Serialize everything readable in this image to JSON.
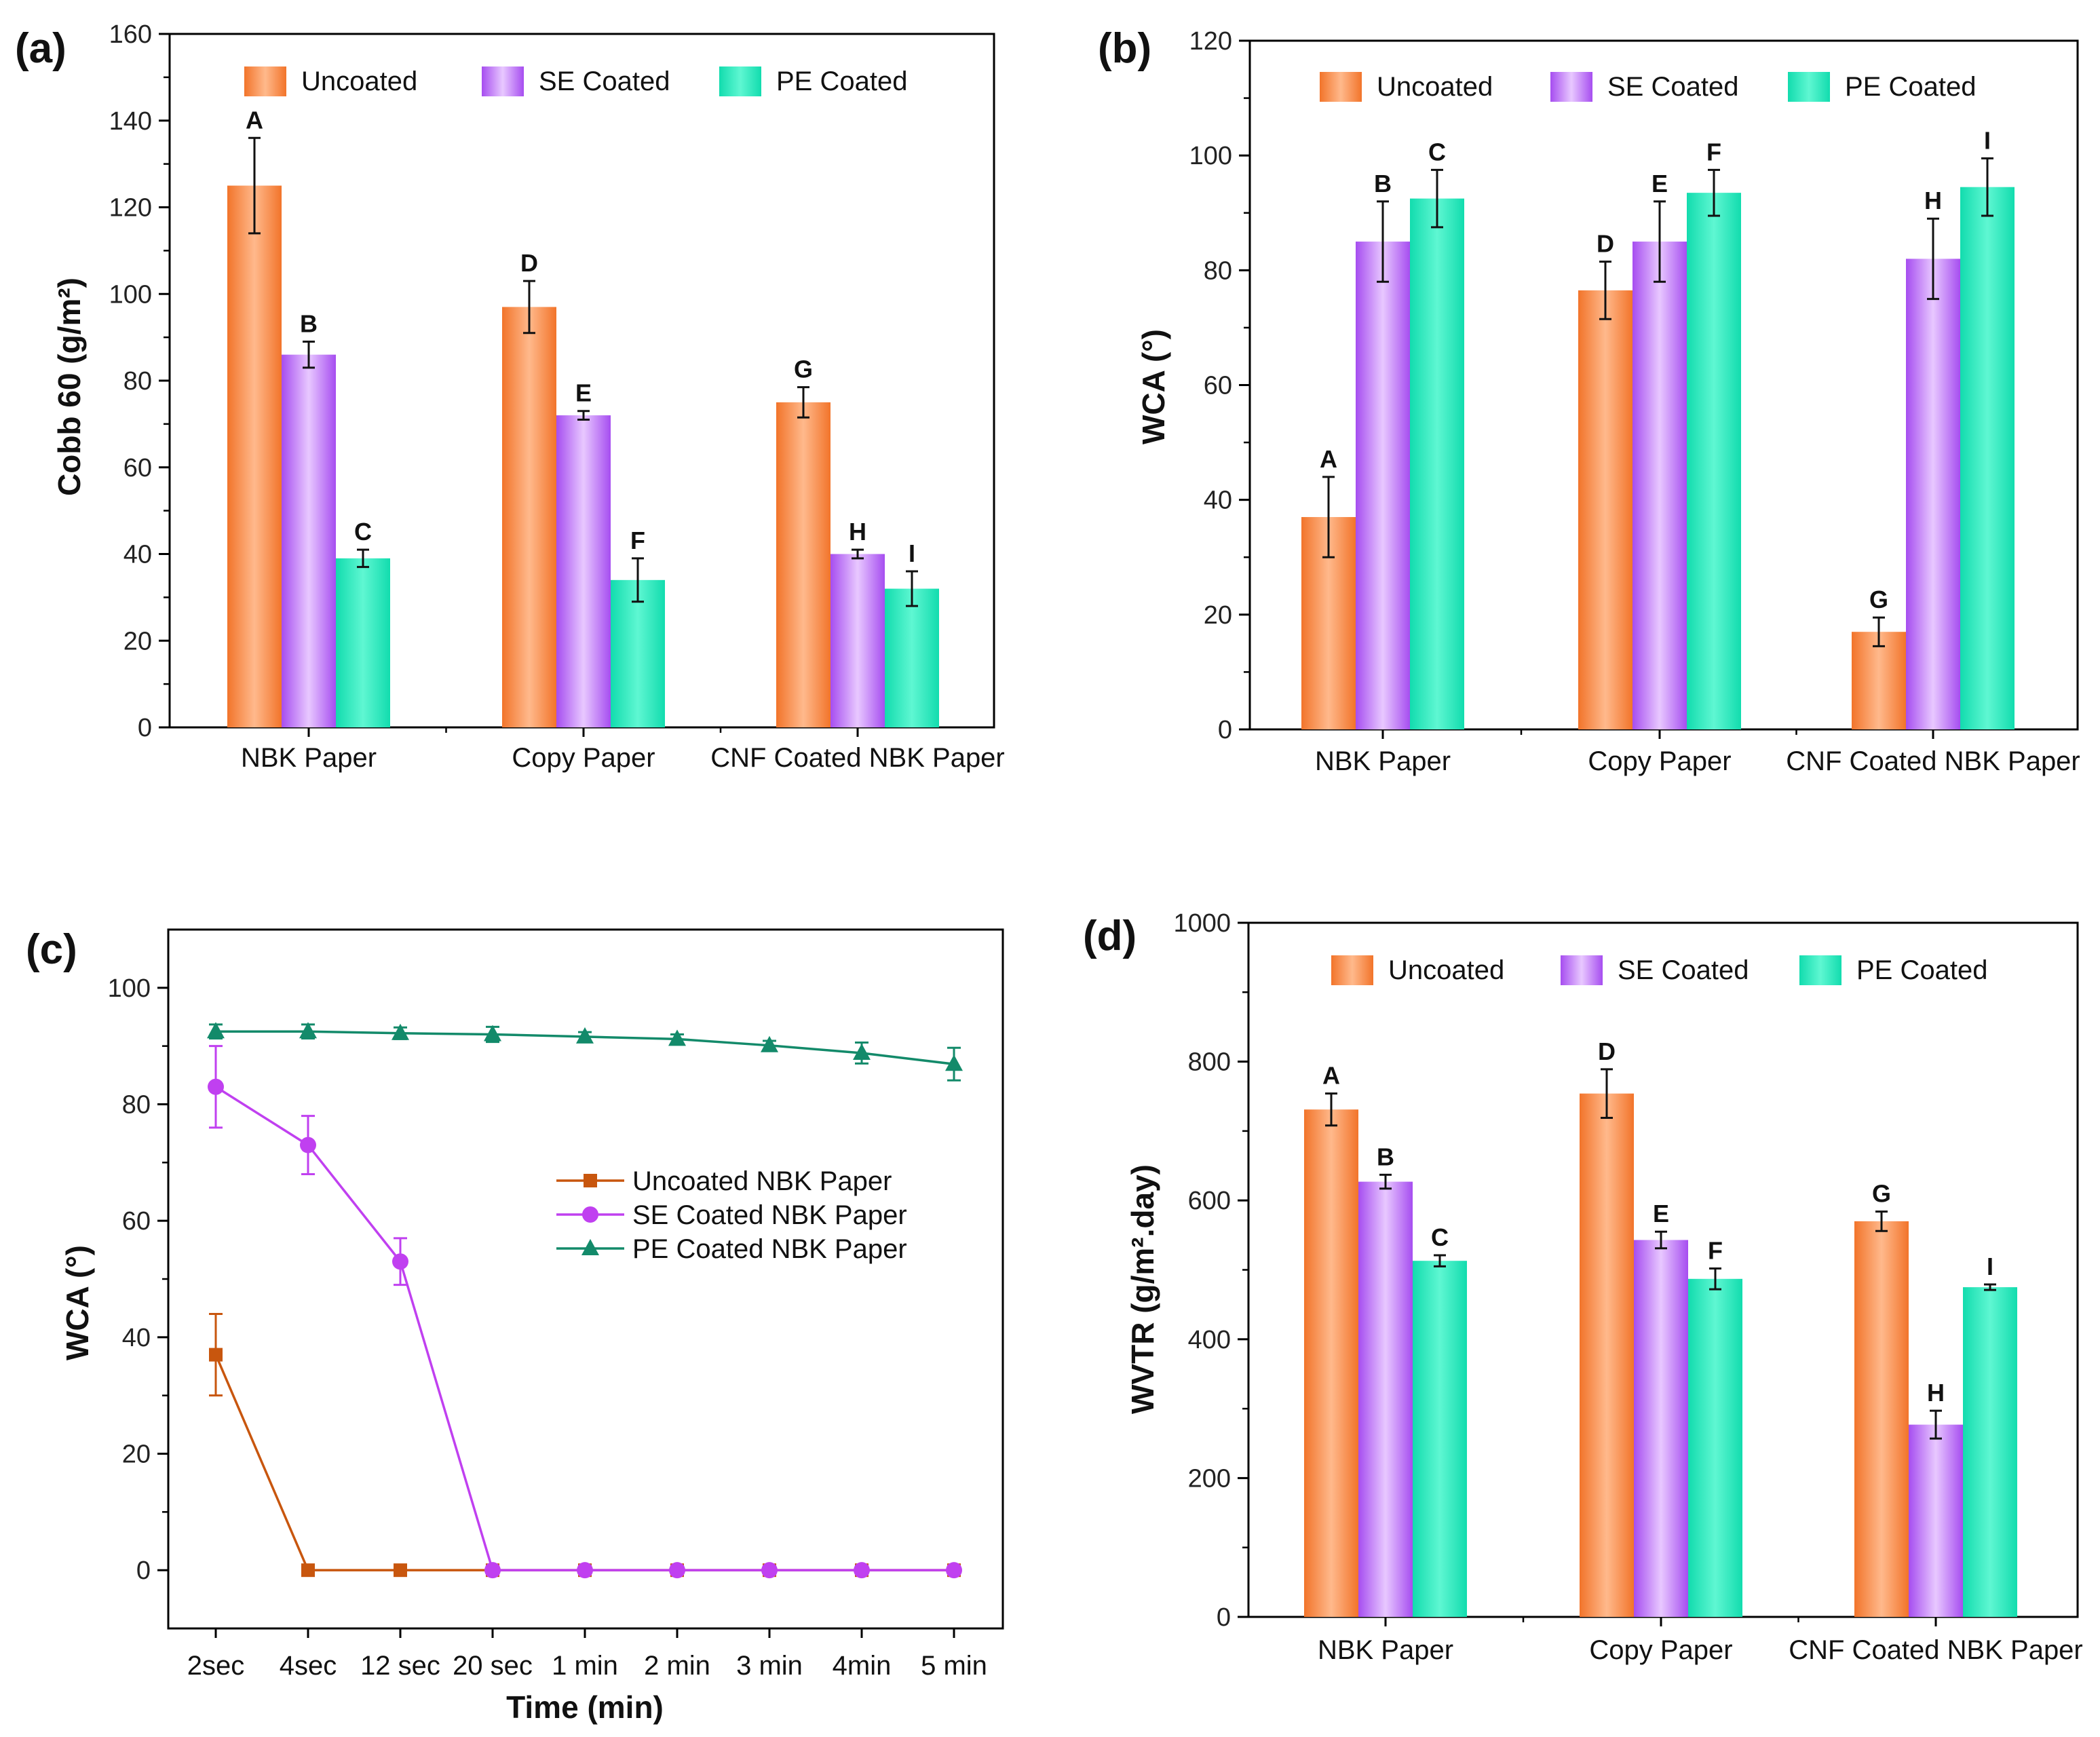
{
  "colors": {
    "uncoated_dark": "#f2742a",
    "uncoated_light": "#ffb98c",
    "se_dark": "#a64df0",
    "se_light": "#e8c8ff",
    "pe_dark": "#12dcae",
    "pe_light": "#5ff7d2",
    "line_uncoated": "#c8560e",
    "line_se": "#c040f0",
    "line_pe": "#138a6a"
  },
  "chart_data": [
    {
      "panel": "(a)",
      "type": "bar",
      "ylabel": "Cobb 60 (g/m²)",
      "ylim": [
        0,
        160
      ],
      "yticks": [
        0,
        20,
        40,
        60,
        80,
        100,
        120,
        140,
        160
      ],
      "categories": [
        "NBK Paper",
        "Copy Paper",
        "CNF Coated NBK Paper"
      ],
      "legend": [
        "Uncoated",
        "SE Coated",
        "PE Coated"
      ],
      "series": [
        {
          "name": "Uncoated",
          "values": [
            125,
            97,
            75
          ],
          "errors": [
            11,
            6,
            3.5
          ],
          "labels": [
            "A",
            "D",
            "G"
          ]
        },
        {
          "name": "SE Coated",
          "values": [
            86,
            72,
            40
          ],
          "errors": [
            3,
            1,
            1
          ],
          "labels": [
            "B",
            "E",
            "H"
          ]
        },
        {
          "name": "PE Coated",
          "values": [
            39,
            34,
            32
          ],
          "errors": [
            2,
            5,
            4
          ],
          "labels": [
            "C",
            "F",
            "I"
          ]
        }
      ]
    },
    {
      "panel": "(b)",
      "type": "bar",
      "ylabel": "WCA (°)",
      "ylim": [
        0,
        120
      ],
      "yticks": [
        0,
        20,
        40,
        60,
        80,
        100,
        120
      ],
      "categories": [
        "NBK Paper",
        "Copy Paper",
        "CNF Coated NBK Paper"
      ],
      "legend": [
        "Uncoated",
        "SE Coated",
        "PE Coated"
      ],
      "series": [
        {
          "name": "Uncoated",
          "values": [
            37,
            76.5,
            17
          ],
          "errors": [
            7,
            5,
            2.5
          ],
          "labels": [
            "A",
            "D",
            "G"
          ]
        },
        {
          "name": "SE Coated",
          "values": [
            85,
            85,
            82
          ],
          "errors": [
            7,
            7,
            7
          ],
          "labels": [
            "B",
            "E",
            "H"
          ]
        },
        {
          "name": "PE Coated",
          "values": [
            92.5,
            93.5,
            94.5
          ],
          "errors": [
            5,
            4,
            5
          ],
          "labels": [
            "C",
            "F",
            "I"
          ]
        }
      ]
    },
    {
      "panel": "(c)",
      "type": "line",
      "xlabel": "Time (min)",
      "ylabel": "WCA (°)",
      "ylim": [
        -10,
        110
      ],
      "yticks": [
        0,
        20,
        40,
        60,
        80,
        100
      ],
      "categories": [
        "2sec",
        "4sec",
        "12 sec",
        "20 sec",
        "1 min",
        "2 min",
        "3 min",
        "4min",
        "5 min"
      ],
      "series": [
        {
          "name": "Uncoated  NBK Paper",
          "marker": "square",
          "values": [
            37,
            0,
            0,
            0,
            0,
            0,
            0,
            0,
            0
          ],
          "errors": [
            7,
            0,
            0,
            0,
            0,
            0,
            0,
            0,
            0
          ]
        },
        {
          "name": "SE Coated NBK Paper",
          "marker": "circle",
          "values": [
            83,
            73,
            53,
            0,
            0,
            0,
            0,
            0,
            0
          ],
          "errors": [
            7,
            5,
            4,
            0,
            0,
            0,
            0,
            0,
            0
          ]
        },
        {
          "name": "PE Coated NBK Paper",
          "marker": "triangle",
          "values": [
            92.5,
            92.5,
            92.2,
            92,
            91.6,
            91.2,
            90.1,
            88.8,
            86.9
          ],
          "errors": [
            1.2,
            1.2,
            1,
            1.3,
            0.8,
            0.8,
            0.8,
            1.8,
            2.8
          ]
        }
      ]
    },
    {
      "panel": "(d)",
      "type": "bar",
      "ylabel": "WVTR (g/m².day)",
      "ylim": [
        0,
        1000
      ],
      "yticks": [
        0,
        200,
        400,
        600,
        800,
        1000
      ],
      "categories": [
        "NBK Paper",
        "Copy Paper",
        "CNF Coated NBK Paper"
      ],
      "legend": [
        "Uncoated",
        "SE Coated",
        "PE Coated"
      ],
      "series": [
        {
          "name": "Uncoated",
          "values": [
            731,
            754,
            570
          ],
          "errors": [
            23,
            35,
            14
          ],
          "labels": [
            "A",
            "D",
            "G"
          ]
        },
        {
          "name": "SE Coated",
          "values": [
            627,
            543,
            277
          ],
          "errors": [
            10,
            12,
            20
          ],
          "labels": [
            "B",
            "E",
            "H"
          ]
        },
        {
          "name": "PE Coated",
          "values": [
            513,
            487,
            475
          ],
          "errors": [
            8,
            15,
            4
          ],
          "labels": [
            "C",
            "F",
            "I"
          ]
        }
      ]
    }
  ]
}
